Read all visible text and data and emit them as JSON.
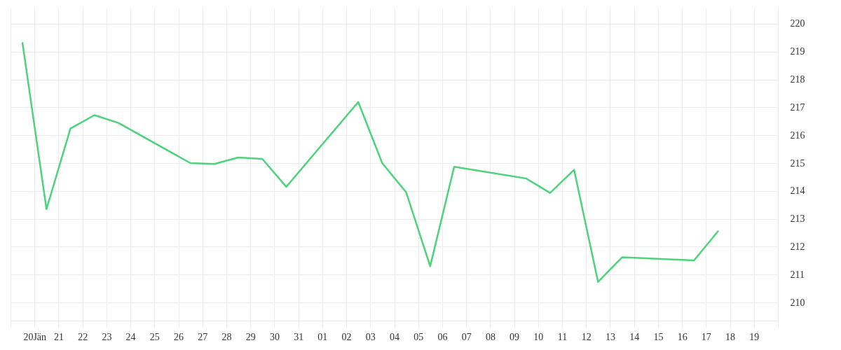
{
  "chart_data": {
    "type": "line",
    "x": [
      "--01-19T12:00",
      "--01-20T12:00",
      "--01-21T12:00",
      "--01-22T12:00",
      "--01-23T12:00",
      "--01-26T12:00",
      "--01-27T12:00",
      "--01-28T12:00",
      "--01-29T12:00",
      "--01-30T12:00",
      "--02-02T12:00",
      "--02-03T12:00",
      "--02-04T12:00",
      "--02-05T12:00",
      "--02-06T12:00",
      "--02-09T12:00",
      "--02-10T12:00",
      "--02-11T12:00",
      "--02-12T12:00",
      "--02-13T12:00",
      "--02-16T12:00",
      "--02-17T12:00"
    ],
    "series": [
      {
        "color": "#4cd37b",
        "values": [
          219.31,
          213.35,
          216.24,
          216.72,
          216.44,
          215.0,
          214.97,
          215.2,
          215.15,
          214.15,
          217.19,
          215.0,
          213.95,
          211.3,
          214.87,
          214.45,
          213.93,
          214.76,
          210.74,
          211.62,
          211.51,
          212.55
        ]
      }
    ],
    "xlim": [
      "--01-19",
      "--02-20"
    ],
    "xticks": [
      {
        "value": "--01-19",
        "label": null
      },
      {
        "value": "--01-20",
        "label": "20Jän"
      },
      {
        "value": "--01-21",
        "label": "21"
      },
      {
        "value": "--01-22",
        "label": "22"
      },
      {
        "value": "--01-23",
        "label": "23"
      },
      {
        "value": "--01-24",
        "label": "24"
      },
      {
        "value": "--01-25",
        "label": "25"
      },
      {
        "value": "--01-26",
        "label": "26"
      },
      {
        "value": "--01-27",
        "label": "27"
      },
      {
        "value": "--01-28",
        "label": "28"
      },
      {
        "value": "--01-29",
        "label": "29"
      },
      {
        "value": "--01-30",
        "label": "30"
      },
      {
        "value": "--01-31",
        "label": "31"
      },
      {
        "value": "--02-01",
        "label": "01"
      },
      {
        "value": "--02-02",
        "label": "02"
      },
      {
        "value": "--02-03",
        "label": "03"
      },
      {
        "value": "--02-04",
        "label": "04"
      },
      {
        "value": "--02-05",
        "label": "05"
      },
      {
        "value": "--02-06",
        "label": "06"
      },
      {
        "value": "--02-07",
        "label": "07"
      },
      {
        "value": "--02-08",
        "label": "08"
      },
      {
        "value": "--02-09",
        "label": "09"
      },
      {
        "value": "--02-10",
        "label": "10"
      },
      {
        "value": "--02-11",
        "label": "11"
      },
      {
        "value": "--02-12",
        "label": "12"
      },
      {
        "value": "--02-13",
        "label": "13"
      },
      {
        "value": "--02-14",
        "label": "14"
      },
      {
        "value": "--02-15",
        "label": "15"
      },
      {
        "value": "--02-16",
        "label": "16"
      },
      {
        "value": "--02-17",
        "label": "17"
      },
      {
        "value": "--02-18",
        "label": "18"
      },
      {
        "value": "--02-19",
        "label": "19"
      },
      {
        "value": "--02-20",
        "label": null
      }
    ],
    "ylim": [
      209.35,
      220.55
    ],
    "yticks": [
      210,
      211,
      212,
      213,
      214,
      215,
      216,
      217,
      218,
      219,
      220
    ],
    "grid": true
  }
}
